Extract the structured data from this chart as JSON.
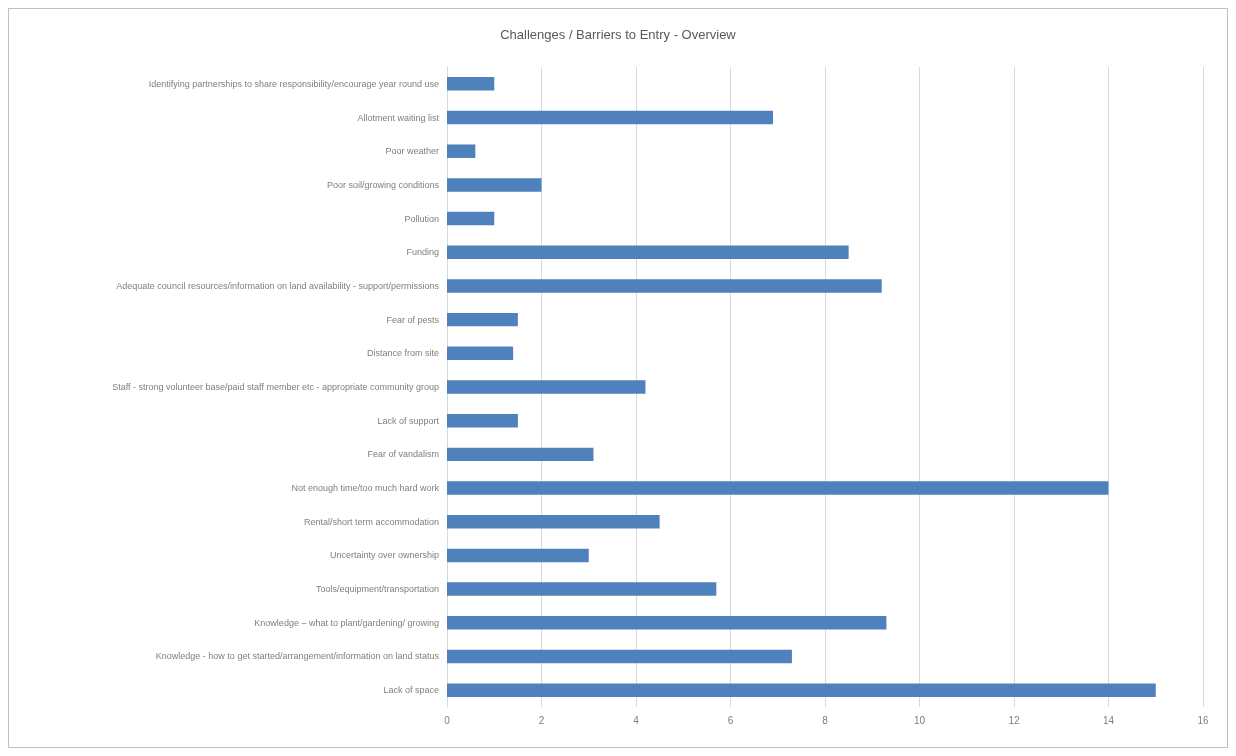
{
  "chart_data": {
    "type": "bar",
    "orientation": "horizontal",
    "title": "Challenges / Barriers to Entry - Overview",
    "categories": [
      "Identifying partnerships to share responsibility/encourage year round use",
      "Allotment waiting list",
      "Poor weather",
      "Poor soil/growing conditions",
      "Pollution",
      "Funding",
      "Adequate council resources/information on land availability - support/permissions",
      "Fear of pests",
      "Distance from site",
      "Staff - strong volunteer base/paid staff member etc - appropriate community group",
      "Lack of support",
      "Fear of vandalism",
      "Not enough time/too much hard work",
      "Rental/short term accommodation",
      "Uncertainty over ownership",
      "Tools/equipment/transportation",
      "Knowledge – what to plant/gardening/ growing",
      "Knowledge - how to get started/arrangement/information on land status",
      "Lack of space"
    ],
    "values": [
      1,
      6.9,
      0.6,
      2,
      1,
      8.5,
      9.2,
      1.5,
      1.4,
      4.2,
      1.5,
      3.1,
      14,
      4.5,
      3,
      5.7,
      9.3,
      7.3,
      15
    ],
    "color": "#4f81bd",
    "xlim": [
      0,
      16
    ],
    "xticks": [
      0,
      2,
      4,
      6,
      8,
      10,
      12,
      14,
      16
    ],
    "grid": "x"
  }
}
